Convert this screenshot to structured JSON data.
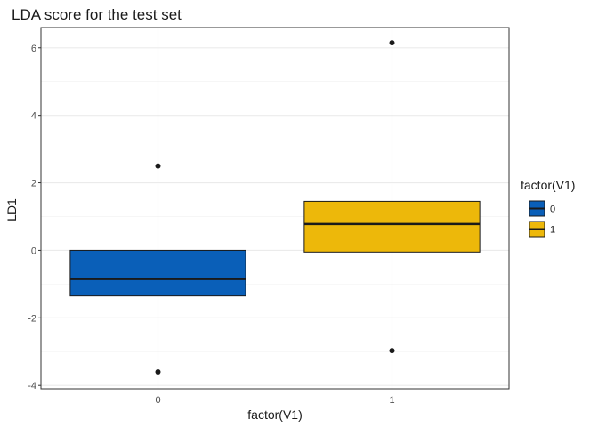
{
  "chart_data": {
    "type": "box",
    "title": "LDA score for the test set",
    "xlabel": "factor(V1)",
    "ylabel": "LD1",
    "categories": [
      "0",
      "1"
    ],
    "ylim": [
      -4.1,
      6.6
    ],
    "yticks": [
      -4,
      -2,
      0,
      2,
      4,
      6
    ],
    "grid": true,
    "legend": {
      "title": "factor(V1)",
      "position": "right",
      "entries": [
        "0",
        "1"
      ]
    },
    "boxes": [
      {
        "category": "0",
        "min": -2.1,
        "q1": -1.35,
        "median": -0.85,
        "q3": 0.0,
        "max": 1.6,
        "outliers": [
          2.5,
          -3.6
        ],
        "color": "#0A5FB8"
      },
      {
        "category": "1",
        "min": -2.2,
        "q1": -0.05,
        "median": 0.78,
        "q3": 1.45,
        "max": 3.25,
        "outliers": [
          6.15,
          -2.97
        ],
        "color": "#EDB80A"
      }
    ]
  }
}
